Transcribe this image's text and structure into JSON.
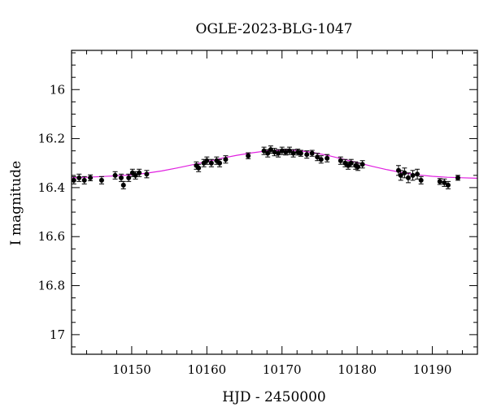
{
  "chart_data": {
    "type": "scatter",
    "title": "OGLE-2023-BLG-1047",
    "xlabel": "HJD - 2450000",
    "ylabel": "I magnitude",
    "xlim": [
      10142,
      10196
    ],
    "ylim": [
      17.08,
      15.84
    ],
    "y_inverted": true,
    "x_ticks": [
      10150,
      10160,
      10170,
      10180,
      10190
    ],
    "x_tick_labels": [
      "10150",
      "10160",
      "10170",
      "10180",
      "10190"
    ],
    "y_ticks": [
      16,
      16.2,
      16.4,
      16.6,
      16.8,
      17
    ],
    "y_tick_labels": [
      "16",
      "16.2",
      "16.4",
      "16.6",
      "16.8",
      "17"
    ],
    "grid": false,
    "colors": {
      "model": "#e020e0",
      "points": "#000000"
    },
    "model": {
      "name": "",
      "x": [
        10142,
        10144,
        10146,
        10148,
        10150,
        10152,
        10154,
        10156,
        10158,
        10160,
        10162,
        10164,
        10166,
        10168,
        10170,
        10171,
        10172,
        10174,
        10176,
        10178,
        10180,
        10182,
        10184,
        10186,
        10188,
        10190,
        10192,
        10194,
        10196
      ],
      "y": [
        16.36,
        16.358,
        16.355,
        16.352,
        16.348,
        16.341,
        16.332,
        16.32,
        16.307,
        16.294,
        16.28,
        16.268,
        16.258,
        16.25,
        16.247,
        16.247,
        16.248,
        16.256,
        16.268,
        16.283,
        16.298,
        16.313,
        16.327,
        16.339,
        16.348,
        16.354,
        16.358,
        16.36,
        16.362
      ]
    },
    "series": [
      {
        "name": "",
        "x": [
          10142.3,
          10143.0,
          10143.7,
          10144.5,
          10146.0,
          10147.8,
          10148.6,
          10148.9,
          10149.6,
          10150.1,
          10150.5,
          10151.0,
          10152.0,
          10158.6,
          10158.9,
          10159.6,
          10160.0,
          10160.6,
          10161.3,
          10161.7,
          10162.5,
          10165.5,
          10167.6,
          10168.1,
          10168.5,
          10169.0,
          10169.5,
          10170.0,
          10170.5,
          10171.0,
          10171.5,
          10172.1,
          10172.5,
          10173.3,
          10174.0,
          10174.7,
          10175.2,
          10176.0,
          10177.8,
          10178.4,
          10178.8,
          10179.2,
          10179.8,
          10180.1,
          10180.7,
          10185.5,
          10185.8,
          10186.3,
          10186.8,
          10187.4,
          10188.0,
          10188.5,
          10191.0,
          10191.6,
          10192.1,
          10193.4
        ],
        "y": [
          16.37,
          16.36,
          16.37,
          16.36,
          16.37,
          16.35,
          16.36,
          16.39,
          16.36,
          16.34,
          16.35,
          16.34,
          16.345,
          16.31,
          16.32,
          16.3,
          16.29,
          16.3,
          16.29,
          16.3,
          16.285,
          16.27,
          16.25,
          16.26,
          16.245,
          16.255,
          16.26,
          16.25,
          16.255,
          16.25,
          16.26,
          16.255,
          16.26,
          16.265,
          16.26,
          16.275,
          16.285,
          16.28,
          16.29,
          16.3,
          16.31,
          16.3,
          16.31,
          16.315,
          16.305,
          16.33,
          16.35,
          16.34,
          16.36,
          16.35,
          16.345,
          16.37,
          16.375,
          16.38,
          16.39,
          16.36
        ],
        "yerr": [
          0.015,
          0.015,
          0.015,
          0.012,
          0.015,
          0.015,
          0.015,
          0.015,
          0.015,
          0.015,
          0.015,
          0.015,
          0.015,
          0.015,
          0.015,
          0.015,
          0.015,
          0.015,
          0.015,
          0.015,
          0.015,
          0.012,
          0.015,
          0.015,
          0.015,
          0.015,
          0.015,
          0.015,
          0.012,
          0.015,
          0.015,
          0.012,
          0.012,
          0.015,
          0.012,
          0.015,
          0.015,
          0.015,
          0.015,
          0.015,
          0.015,
          0.015,
          0.015,
          0.015,
          0.015,
          0.02,
          0.02,
          0.02,
          0.02,
          0.02,
          0.02,
          0.015,
          0.012,
          0.015,
          0.015,
          0.01
        ]
      }
    ]
  }
}
